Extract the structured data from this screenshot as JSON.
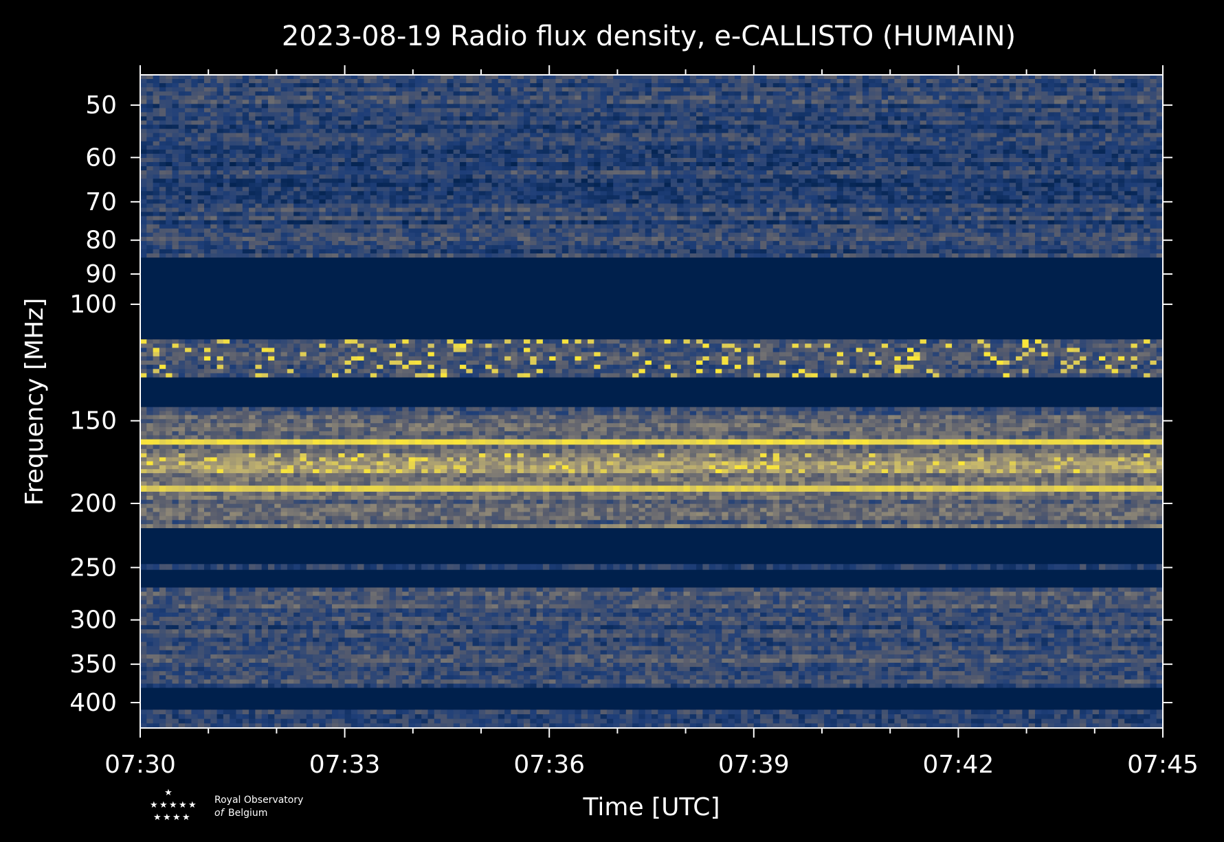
{
  "chart_data": {
    "type": "heatmap",
    "title": "2023-08-19 Radio flux density, e-CALLISTO (HUMAIN)",
    "xlabel": "Time [UTC]",
    "ylabel": "Frequency [MHz]",
    "x_ticks": [
      "07:30",
      "07:33",
      "07:36",
      "07:39",
      "07:42",
      "07:45"
    ],
    "x_range_minutes": [
      0,
      15
    ],
    "y_scale": "log",
    "y_ticks": [
      50,
      60,
      70,
      80,
      90,
      100,
      150,
      200,
      250,
      300,
      350,
      400
    ],
    "y_range": [
      45,
      437
    ],
    "colormap": [
      "#00204c",
      "#1f3f79",
      "#575c6d",
      "#8c8576",
      "#c4b56e",
      "#fde838"
    ],
    "bands": [
      {
        "f_low": 45,
        "f_high": 85,
        "kind": "noise",
        "level": 0.25
      },
      {
        "f_low": 85,
        "f_high": 113,
        "kind": "gap",
        "level": 0
      },
      {
        "f_low": 113,
        "f_high": 129,
        "kind": "bursty",
        "level": 0.35
      },
      {
        "f_low": 129,
        "f_high": 143,
        "kind": "gap",
        "level": 0
      },
      {
        "f_low": 143,
        "f_high": 160,
        "kind": "noise",
        "level": 0.4
      },
      {
        "f_low": 160,
        "f_high": 163,
        "kind": "strong",
        "level": 0.95
      },
      {
        "f_low": 163,
        "f_high": 168,
        "kind": "noise",
        "level": 0.45
      },
      {
        "f_low": 168,
        "f_high": 180,
        "kind": "bursty",
        "level": 0.65
      },
      {
        "f_low": 180,
        "f_high": 188,
        "kind": "noise",
        "level": 0.5
      },
      {
        "f_low": 188,
        "f_high": 192,
        "kind": "strong",
        "level": 0.9
      },
      {
        "f_low": 192,
        "f_high": 218,
        "kind": "noise",
        "level": 0.45
      },
      {
        "f_low": 218,
        "f_high": 247,
        "kind": "gap",
        "level": 0
      },
      {
        "f_low": 247,
        "f_high": 252,
        "kind": "noise",
        "level": 0.25
      },
      {
        "f_low": 252,
        "f_high": 268,
        "kind": "gap",
        "level": 0
      },
      {
        "f_low": 268,
        "f_high": 380,
        "kind": "noise",
        "level": 0.3
      },
      {
        "f_low": 380,
        "f_high": 410,
        "kind": "gap",
        "level": 0
      },
      {
        "f_low": 410,
        "f_high": 437,
        "kind": "noise",
        "level": 0.25
      }
    ],
    "grid": false,
    "legend": "none"
  },
  "logo": {
    "line1": "Royal Observatory",
    "line2_italic": "of",
    "line2": "Belgium"
  }
}
